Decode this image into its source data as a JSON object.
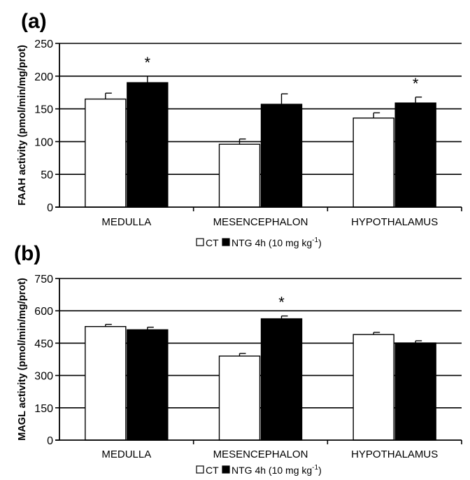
{
  "chart_data": [
    {
      "type": "bar",
      "panel_label": "(a)",
      "categories": [
        "MEDULLA",
        "MESENCEPHALON",
        "HYPOTHALAMUS"
      ],
      "series": [
        {
          "name": "CT",
          "color": "#ffffff",
          "values": [
            165,
            96,
            136
          ],
          "errors": [
            9,
            8,
            8
          ]
        },
        {
          "name": "NTG 4h (10 mg kg",
          "color": "#000000",
          "values": [
            190,
            157,
            159
          ],
          "errors": [
            10,
            16,
            9
          ]
        }
      ],
      "significance": [
        "*",
        "",
        "*"
      ],
      "ylabel": "FAAH activity (pmol/min/mg/prot)",
      "ylim": [
        0,
        250
      ],
      "yticks": [
        0,
        50,
        100,
        150,
        200,
        250
      ],
      "grid": true,
      "legend": {
        "ct": "CT",
        "ntg": "NTG 4h (10 mg kg",
        "sup": "-1",
        "close": ")"
      }
    },
    {
      "type": "bar",
      "panel_label": "(b)",
      "categories": [
        "MEDULLA",
        "MESENCEPHALON",
        "HYPOTHALAMUS"
      ],
      "series": [
        {
          "name": "CT",
          "color": "#ffffff",
          "values": [
            527,
            390,
            490
          ],
          "errors": [
            10,
            12,
            10
          ]
        },
        {
          "name": "NTG 4h (10 mg kg",
          "color": "#000000",
          "values": [
            512,
            563,
            451
          ],
          "errors": [
            12,
            13,
            10
          ]
        }
      ],
      "significance": [
        "",
        "*",
        ""
      ],
      "ylabel": "MAGL activity (pmol/min/mg/prot)",
      "ylim": [
        0,
        750
      ],
      "yticks": [
        0,
        150,
        300,
        450,
        600,
        750
      ],
      "grid": true,
      "legend": {
        "ct": "CT",
        "ntg": "NTG 4h (10 mg kg",
        "sup": "-1",
        "close": ")"
      }
    }
  ]
}
